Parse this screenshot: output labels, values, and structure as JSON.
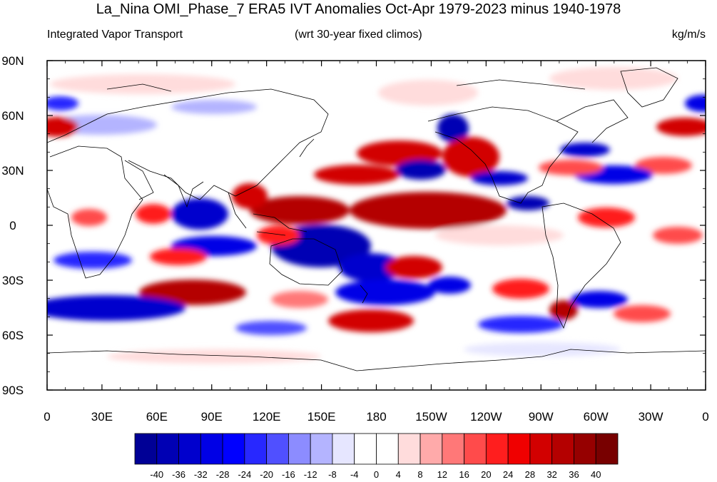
{
  "title": "La_Nina OMI_Phase_7 ERA5 IVT Anomalies Oct-Apr 1979-2023 minus 1940-1978",
  "subtitle_left": "Integrated Vapor Transport",
  "subtitle_center": "(wrt 30-year fixed climos)",
  "subtitle_right": "kg/m/s",
  "lat_labels": [
    "90N",
    "60N",
    "30N",
    "0",
    "30S",
    "60S",
    "90S"
  ],
  "lon_labels": [
    "0",
    "30E",
    "60E",
    "90E",
    "120E",
    "150E",
    "180",
    "150W",
    "120W",
    "90W",
    "60W",
    "30W",
    "0"
  ],
  "colorbar": {
    "labels": [
      "-40",
      "-36",
      "-32",
      "-28",
      "-24",
      "-20",
      "-16",
      "-12",
      "-8",
      "-4",
      "0",
      "4",
      "8",
      "12",
      "16",
      "20",
      "24",
      "28",
      "32",
      "36",
      "40"
    ],
    "colors": [
      "#000096",
      "#0000b4",
      "#0000cd",
      "#0000e6",
      "#0000ff",
      "#2828ff",
      "#5050ff",
      "#8c8cff",
      "#b4b4ff",
      "#e6e6ff",
      "#ffffff",
      "#ffffff",
      "#ffdcdc",
      "#ffaaaa",
      "#ff7878",
      "#ff4b4b",
      "#ff1e1e",
      "#f00000",
      "#d20000",
      "#b40000",
      "#960000",
      "#780000"
    ]
  }
}
